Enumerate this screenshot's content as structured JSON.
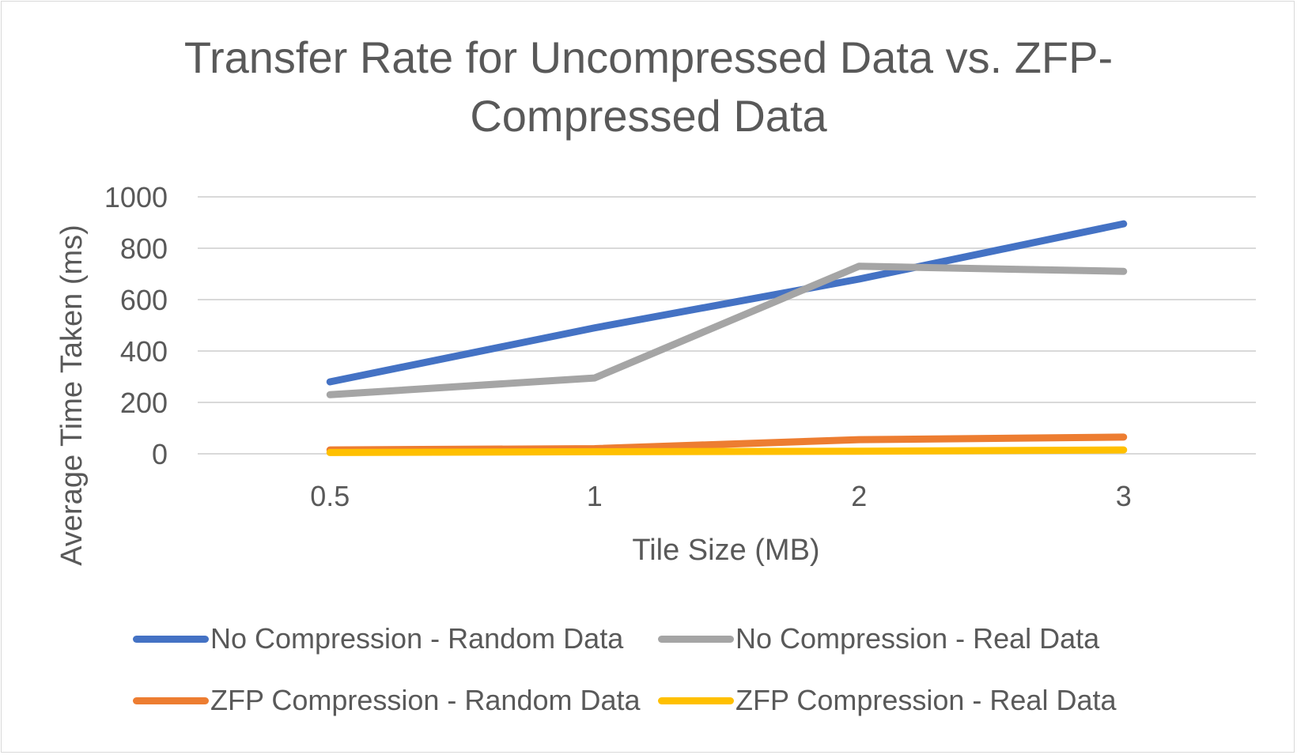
{
  "chart_data": {
    "type": "line",
    "title": "Transfer Rate for Uncompressed Data vs. ZFP-Compressed Data",
    "title_lines": [
      "Transfer Rate for Uncompressed Data vs. ZFP-",
      "Compressed Data"
    ],
    "xlabel": "Tile Size (MB)",
    "ylabel": "Average Time Taken (ms)",
    "categories": [
      "0.5",
      "1",
      "2",
      "3"
    ],
    "ylim": [
      0,
      1000
    ],
    "yticks": [
      "0",
      "200",
      "400",
      "600",
      "800",
      "1000"
    ],
    "grid": true,
    "legend_position": "bottom",
    "series": [
      {
        "name": "No Compression - Random Data",
        "color": "#4472C4",
        "values": [
          280,
          490,
          680,
          895
        ]
      },
      {
        "name": "No Compression - Real Data",
        "color": "#A5A5A5",
        "values": [
          230,
          295,
          730,
          710
        ]
      },
      {
        "name": "ZFP Compression - Random Data",
        "color": "#ED7D31",
        "values": [
          15,
          20,
          55,
          65
        ]
      },
      {
        "name": "ZFP Compression - Real Data",
        "color": "#FFC000",
        "values": [
          5,
          8,
          10,
          15
        ]
      }
    ]
  }
}
